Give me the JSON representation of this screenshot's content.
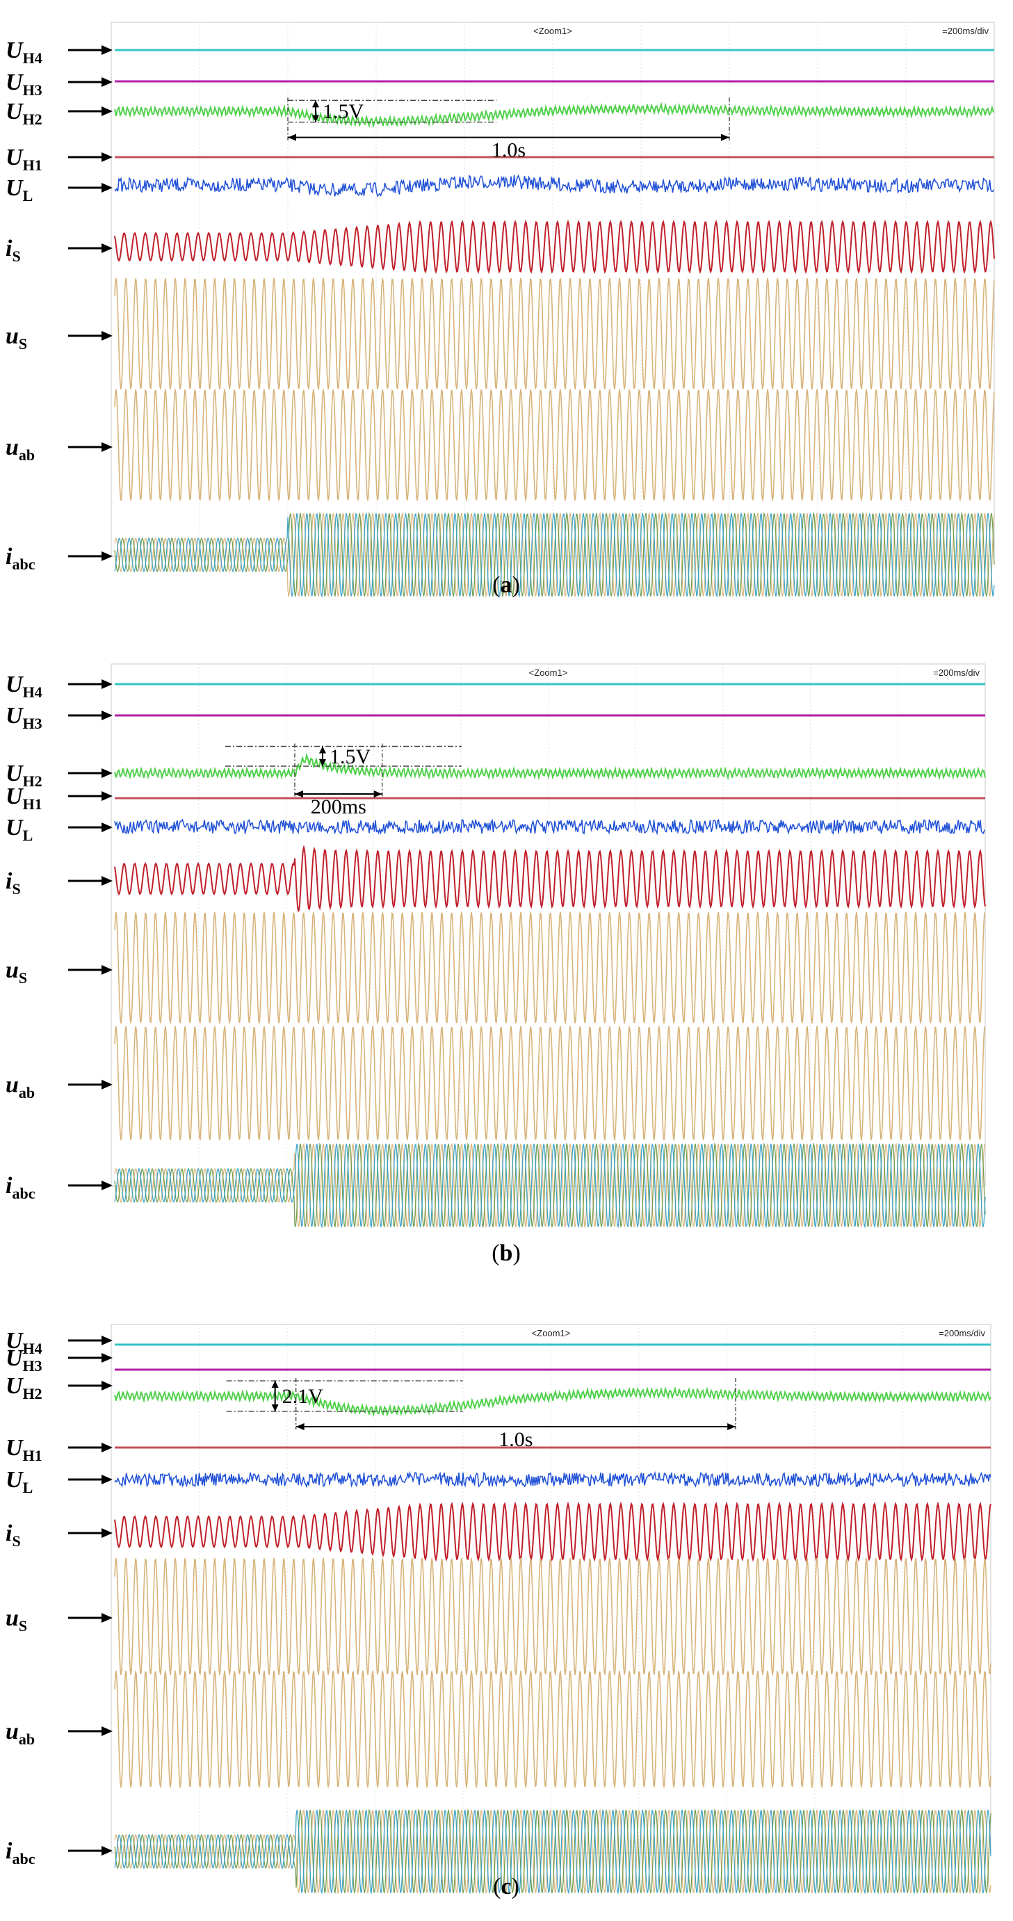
{
  "chart_data": [
    {
      "type": "line",
      "panel": "a",
      "caption": "(a)",
      "caption_letter": "a",
      "zoom_label": "<Zoom1>",
      "timebase": "=200ms/div",
      "transient_start_div": 2,
      "annotations": {
        "voltage": "1.5V",
        "time": "1.0s",
        "time_span_div": 5
      },
      "series": [
        {
          "name": "U_H4",
          "base": "U",
          "subscript": "H4",
          "color": "#35c3c6",
          "kind": "dc"
        },
        {
          "name": "U_H3",
          "base": "U",
          "subscript": "H3",
          "color": "#b01fa8",
          "kind": "dc"
        },
        {
          "name": "U_H2",
          "base": "U",
          "subscript": "H2",
          "color": "#4fd04a",
          "kind": "ripple",
          "dip": 1.5,
          "settle_s": 1.0
        },
        {
          "name": "U_H1",
          "base": "U",
          "subscript": "H1",
          "color": "#c0505a",
          "kind": "dc"
        },
        {
          "name": "U_L",
          "base": "U",
          "subscript": "L",
          "color": "#1e4fd6",
          "kind": "noise"
        },
        {
          "name": "i_S",
          "base": "i",
          "subscript": "S",
          "color": "#c0202a",
          "kind": "sine"
        },
        {
          "name": "u_S",
          "base": "u",
          "subscript": "S",
          "color": "#d8b47a",
          "kind": "sine"
        },
        {
          "name": "u_ab",
          "base": "u",
          "subscript": "ab",
          "color": "#d8b47a",
          "kind": "sine"
        },
        {
          "name": "i_abc",
          "base": "i",
          "subscript": "abc",
          "color": "#6d9a4a",
          "kind": "three-phase",
          "step_at_div": 2
        }
      ]
    },
    {
      "type": "line",
      "panel": "b",
      "caption": "(b)",
      "caption_letter": "b",
      "zoom_label": "<Zoom1>",
      "timebase": "=200ms/div",
      "transient_start_div": 2.1,
      "annotations": {
        "voltage": "1.5V",
        "time": "200ms",
        "time_span_div": 1
      },
      "series": [
        {
          "name": "U_H4",
          "base": "U",
          "subscript": "H4",
          "color": "#35c3c6",
          "kind": "dc"
        },
        {
          "name": "U_H3",
          "base": "U",
          "subscript": "H3",
          "color": "#b01fa8",
          "kind": "dc"
        },
        {
          "name": "U_H2",
          "base": "U",
          "subscript": "H2",
          "color": "#4fd04a",
          "kind": "ripple",
          "overshoot": 1.5,
          "settle_s": 0.2
        },
        {
          "name": "U_H1",
          "base": "U",
          "subscript": "H1",
          "color": "#c0505a",
          "kind": "dc"
        },
        {
          "name": "U_L",
          "base": "U",
          "subscript": "L",
          "color": "#1e4fd6",
          "kind": "noise"
        },
        {
          "name": "i_S",
          "base": "i",
          "subscript": "S",
          "color": "#c0202a",
          "kind": "sine"
        },
        {
          "name": "u_S",
          "base": "u",
          "subscript": "S",
          "color": "#d8b47a",
          "kind": "sine"
        },
        {
          "name": "u_ab",
          "base": "u",
          "subscript": "ab",
          "color": "#d8b47a",
          "kind": "sine"
        },
        {
          "name": "i_abc",
          "base": "i",
          "subscript": "abc",
          "color": "#6d9a4a",
          "kind": "three-phase",
          "step_at_div": 2.1
        }
      ]
    },
    {
      "type": "line",
      "panel": "c",
      "caption": "(c)",
      "caption_letter": "c",
      "zoom_label": "<Zoom1>",
      "timebase": "=200ms/div",
      "transient_start_div": 2.1,
      "annotations": {
        "voltage": "2.1V",
        "time": "1.0s",
        "time_span_div": 5
      },
      "series": [
        {
          "name": "U_H4",
          "base": "U",
          "subscript": "H4",
          "color": "#35c3c6",
          "kind": "dc"
        },
        {
          "name": "U_H3",
          "base": "U",
          "subscript": "H3",
          "color": "#b01fa8",
          "kind": "dc"
        },
        {
          "name": "U_H2",
          "base": "U",
          "subscript": "H2",
          "color": "#4fd04a",
          "kind": "ripple",
          "dip": 2.1,
          "settle_s": 1.0
        },
        {
          "name": "U_H1",
          "base": "U",
          "subscript": "H1",
          "color": "#c0505a",
          "kind": "dc"
        },
        {
          "name": "U_L",
          "base": "U",
          "subscript": "L",
          "color": "#1e4fd6",
          "kind": "noise"
        },
        {
          "name": "i_S",
          "base": "i",
          "subscript": "S",
          "color": "#c0202a",
          "kind": "sine"
        },
        {
          "name": "u_S",
          "base": "u",
          "subscript": "S",
          "color": "#d8b47a",
          "kind": "sine"
        },
        {
          "name": "u_ab",
          "base": "u",
          "subscript": "ab",
          "color": "#d8b47a",
          "kind": "sine"
        },
        {
          "name": "i_abc",
          "base": "i",
          "subscript": "abc",
          "color": "#6d9a4a",
          "kind": "three-phase",
          "step_at_div": 2.1
        }
      ]
    }
  ]
}
